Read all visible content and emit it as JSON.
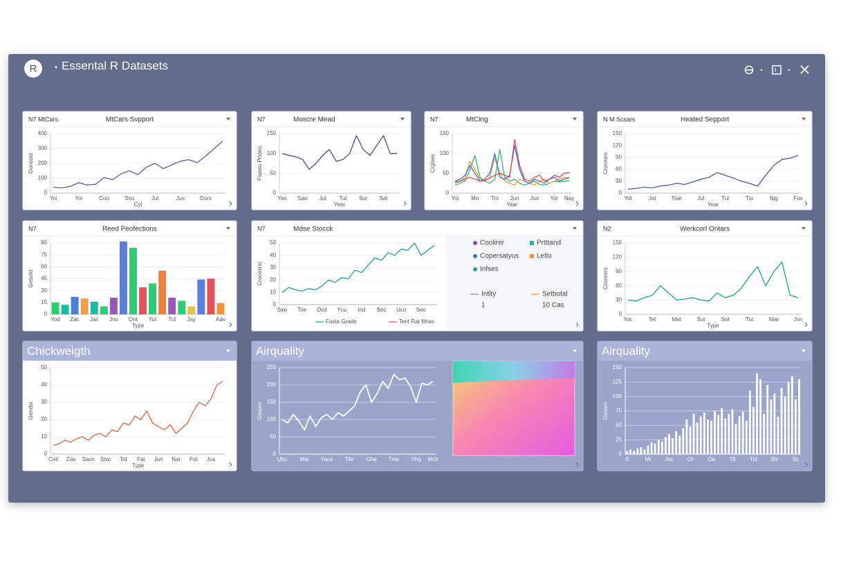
{
  "header": {
    "logo": "R",
    "title": "Essental R Datasets"
  },
  "chart_data": [
    {
      "type": "line",
      "tag": "N7 MtCars",
      "title": "MtCars Svpport",
      "x_label": "Cyl",
      "y_label": "Gonsold",
      "ylim": [
        0,
        400
      ],
      "yticks": [
        0,
        100,
        200,
        300,
        400
      ],
      "categories": [
        "Yoi",
        null,
        null,
        "Yoi",
        null,
        null,
        "Coo",
        null,
        null,
        "Sou",
        null,
        null,
        "Jul",
        null,
        null,
        "Jus",
        null,
        null,
        "Dors",
        null,
        null
      ],
      "series": [
        {
          "color": "#5a5aa0",
          "values": [
            40,
            35,
            45,
            70,
            55,
            60,
            105,
            90,
            130,
            150,
            125,
            175,
            200,
            165,
            190,
            215,
            225,
            205,
            250,
            300,
            350
          ]
        }
      ]
    },
    {
      "type": "line",
      "tag": "N7",
      "title": "Moscre Mead",
      "x_label": "Year",
      "y_label": "Fiqeso Prtdeo",
      "ylim": [
        0,
        150
      ],
      "yticks": [
        0,
        50,
        100,
        150
      ],
      "categories": [
        "Yoo",
        null,
        null,
        "Sao",
        null,
        null,
        "Jul",
        null,
        null,
        "Tul",
        null,
        null,
        "Sur",
        null,
        null,
        "Sat",
        null,
        null
      ],
      "series": [
        {
          "color": "#4a4a90",
          "values": [
            100,
            95,
            92,
            85,
            60,
            75,
            95,
            110,
            80,
            85,
            100,
            145,
            110,
            95,
            120,
            145,
            100,
            100
          ]
        }
      ]
    },
    {
      "type": "line",
      "tag": "N7",
      "title": "MtCing",
      "x_label": "Year",
      "y_label": "Crglses",
      "ylim": [
        0,
        150
      ],
      "yticks": [
        0,
        50,
        100,
        150
      ],
      "categories": [
        "Yoi",
        null,
        null,
        null,
        "Mo",
        null,
        null,
        null,
        "Tni",
        null,
        null,
        null,
        "Jun",
        null,
        null,
        null,
        "Jus",
        null,
        null,
        null,
        "Yor",
        null,
        null,
        "Nay"
      ],
      "series": [
        {
          "color": "#3cb371",
          "values": [
            20,
            25,
            30,
            60,
            95,
            40,
            30,
            25,
            35,
            110,
            40,
            30,
            35,
            25,
            20,
            25,
            30,
            22,
            20,
            25,
            30,
            28,
            30,
            32
          ]
        },
        {
          "color": "#f0a030",
          "values": [
            25,
            30,
            40,
            80,
            60,
            35,
            30,
            40,
            90,
            50,
            30,
            25,
            20,
            35,
            30,
            25,
            20,
            30,
            35,
            25,
            30,
            35,
            40,
            38
          ]
        },
        {
          "color": "#3b6fd0",
          "values": [
            30,
            35,
            45,
            70,
            50,
            30,
            35,
            50,
            100,
            40,
            35,
            45,
            120,
            60,
            30,
            25,
            35,
            30,
            25,
            35,
            40,
            30,
            35,
            40
          ]
        },
        {
          "color": "#e04a4a",
          "values": [
            28,
            30,
            35,
            40,
            35,
            30,
            32,
            38,
            45,
            50,
            45,
            40,
            135,
            70,
            35,
            30,
            40,
            45,
            30,
            35,
            45,
            40,
            50,
            52
          ]
        }
      ]
    },
    {
      "type": "line",
      "tag": "N M Scsars",
      "title": "Heated Sepport",
      "x_label": "Year",
      "y_label": "Crocesrs",
      "ylim": [
        0,
        150
      ],
      "yticks": [
        0,
        30,
        60,
        90,
        120,
        150
      ],
      "categories": [
        "Yot",
        null,
        null,
        "Jat",
        null,
        null,
        "Toar",
        null,
        null,
        "Jul",
        null,
        null,
        "Tul",
        null,
        null,
        "Tio",
        null,
        null,
        "Nig",
        null,
        null,
        "Fos"
      ],
      "series": [
        {
          "color": "#4a5a9a",
          "values": [
            10,
            12,
            15,
            13,
            18,
            20,
            25,
            22,
            28,
            35,
            40,
            52,
            45,
            38,
            30,
            25,
            18,
            45,
            70,
            85,
            88,
            95
          ]
        }
      ]
    },
    {
      "type": "bar",
      "tag": "N7",
      "title": "Reed Peofections",
      "x_label": "Type",
      "y_label": "Gesold",
      "ylim": [
        0,
        90
      ],
      "yticks": [
        0,
        15,
        30,
        45,
        60,
        75,
        90
      ],
      "categories": [
        "Yod",
        null,
        "Zac",
        null,
        "Jac",
        null,
        "Jno",
        null,
        "Ont",
        null,
        "Yut",
        null,
        "Tut",
        null,
        "Jay",
        null,
        null,
        "Ado"
      ],
      "values": [
        15,
        12,
        22,
        20,
        16,
        10,
        21,
        92,
        84,
        34,
        39,
        55,
        21,
        17,
        10,
        44,
        45,
        14
      ],
      "colors": [
        "#2ecc71",
        "#1abc9c",
        "#4a7fd6",
        "#f39c4a",
        "#1abc9c",
        "#2ecc71",
        "#9b59b6",
        "#5b7fe0",
        "#2ecc71",
        "#e5505a",
        "#2ecc71",
        "#f0803c",
        "#9b59b6",
        "#2ecc71",
        "#e5c24a",
        "#5b7fe0",
        "#e5505a",
        "#f0943a"
      ]
    },
    {
      "type": "line",
      "tag": "N7",
      "title": "Mdse Stocck",
      "y_label": "Crocesrio",
      "ylim": [
        0,
        50
      ],
      "yticks": [
        0,
        10,
        20,
        30,
        40,
        50
      ],
      "categories": [
        "Seo",
        null,
        null,
        "Toe",
        null,
        null,
        "Ocd",
        null,
        null,
        "Ycu",
        null,
        null,
        "Ind",
        null,
        null,
        "Sec",
        null,
        null,
        "Uco",
        null,
        null,
        "Seo",
        null,
        null
      ],
      "series": [
        {
          "color": "#22a090",
          "values": [
            10,
            14,
            12,
            11,
            13,
            12,
            15,
            20,
            18,
            22,
            21,
            28,
            26,
            32,
            38,
            36,
            42,
            40,
            45,
            44,
            50,
            40,
            44,
            48
          ]
        }
      ],
      "legend_items": [
        {
          "label": "Coolirer",
          "color": "#7a4fb0"
        },
        {
          "label": "Prtttand",
          "color": "#22b5a0"
        },
        {
          "label": "Copersatyus",
          "color": "#3a78c8"
        },
        {
          "label": "Letlo",
          "color": "#f0943a"
        },
        {
          "label": "Infses",
          "color": "#22a090"
        }
      ],
      "stats": [
        {
          "label": "Intity",
          "value": "1",
          "color": "#888888"
        },
        {
          "label": "Setbotal",
          "value": "10 Cas",
          "color": "#f0943a"
        }
      ],
      "bottom_legend": [
        {
          "label": "Fasta Grade",
          "color": "#22a090"
        },
        {
          "label": "Tent Rar Mrae",
          "color": "#e04a4a"
        }
      ]
    },
    {
      "type": "line",
      "tag": "N2",
      "title": "Werkcorl Ontars",
      "x_label": "Type",
      "y_label": "Crocesrs",
      "ylim": [
        0,
        150
      ],
      "yticks": [
        0,
        30,
        60,
        90,
        120,
        150
      ],
      "categories": [
        "Yoc",
        null,
        null,
        "Tet",
        null,
        null,
        "Mat",
        null,
        null,
        "Sut",
        null,
        null,
        "Sot",
        null,
        null,
        "Tut",
        null,
        null,
        "Nlar",
        null,
        null,
        "Jvn"
      ],
      "series": [
        {
          "color": "#1aa090",
          "values": [
            30,
            28,
            35,
            40,
            60,
            45,
            30,
            32,
            35,
            30,
            28,
            45,
            35,
            40,
            55,
            80,
            100,
            60,
            90,
            110,
            40,
            35
          ]
        }
      ]
    },
    {
      "type": "line",
      "title": "Chickweigth",
      "x_label": "Type",
      "y_label": "Gendsi",
      "ylim": [
        0,
        50
      ],
      "yticks": [
        0,
        10,
        20,
        30,
        40,
        50
      ],
      "categories": [
        "Coil",
        null,
        null,
        "Zoo",
        null,
        null,
        "Saco",
        null,
        null,
        "Stoc",
        null,
        null,
        "Tot",
        null,
        null,
        "Fat",
        null,
        null,
        "Jun",
        null,
        null,
        "Nat",
        null,
        null,
        "Fot",
        null,
        null,
        "Jus",
        null,
        null
      ],
      "series": [
        {
          "color": "#e0603a",
          "values": [
            5,
            6,
            8,
            7,
            9,
            10,
            8,
            11,
            12,
            10,
            14,
            13,
            18,
            17,
            22,
            20,
            25,
            18,
            16,
            14,
            17,
            12,
            15,
            18,
            25,
            30,
            28,
            32,
            40,
            42
          ]
        }
      ]
    },
    {
      "type": "line",
      "title": "Airquality",
      "y_label": "Gssoro",
      "ylim": [
        0,
        250
      ],
      "yticks": [
        0,
        50,
        100,
        150,
        200,
        250
      ],
      "categories": [
        "Ubo",
        null,
        null,
        null,
        "Mai",
        null,
        null,
        null,
        "Yace",
        null,
        null,
        null,
        "Tiie",
        null,
        null,
        null,
        "Ghe",
        null,
        null,
        null,
        "Tnie",
        null,
        null,
        null,
        "Yhg",
        null,
        null,
        "Mch"
      ],
      "series": [
        {
          "color": "#ffffff",
          "values": [
            100,
            90,
            115,
            95,
            70,
            110,
            80,
            105,
            115,
            100,
            120,
            110,
            125,
            140,
            180,
            200,
            150,
            175,
            210,
            190,
            230,
            215,
            220,
            195,
            150,
            205,
            200,
            210
          ]
        }
      ]
    },
    {
      "type": "bar",
      "title": "Airquality",
      "y_label": "Gssoro",
      "ylim": [
        0,
        150
      ],
      "yticks": [
        0,
        25,
        50,
        75,
        100,
        125,
        150
      ],
      "categories": [
        "0",
        null,
        null,
        null,
        null,
        null,
        "Mt",
        null,
        null,
        null,
        null,
        null,
        "Joc",
        null,
        null,
        null,
        null,
        null,
        "Ot",
        null,
        null,
        null,
        null,
        null,
        "Oa",
        null,
        null,
        null,
        null,
        null,
        "Tlt",
        null,
        null,
        null,
        null,
        null,
        "Tid",
        null,
        null,
        null,
        null,
        null,
        "Stc",
        null,
        null,
        null,
        null,
        null,
        "Sc",
        null
      ],
      "values": [
        5,
        8,
        6,
        10,
        12,
        8,
        15,
        20,
        18,
        25,
        22,
        30,
        35,
        28,
        40,
        32,
        45,
        60,
        48,
        70,
        55,
        65,
        72,
        60,
        58,
        75,
        68,
        80,
        62,
        70,
        78,
        52,
        66,
        74,
        58,
        110,
        82,
        140,
        130,
        70,
        120,
        95,
        105,
        65,
        115,
        100,
        125,
        135,
        95,
        130
      ],
      "color": "#ffffff"
    }
  ]
}
